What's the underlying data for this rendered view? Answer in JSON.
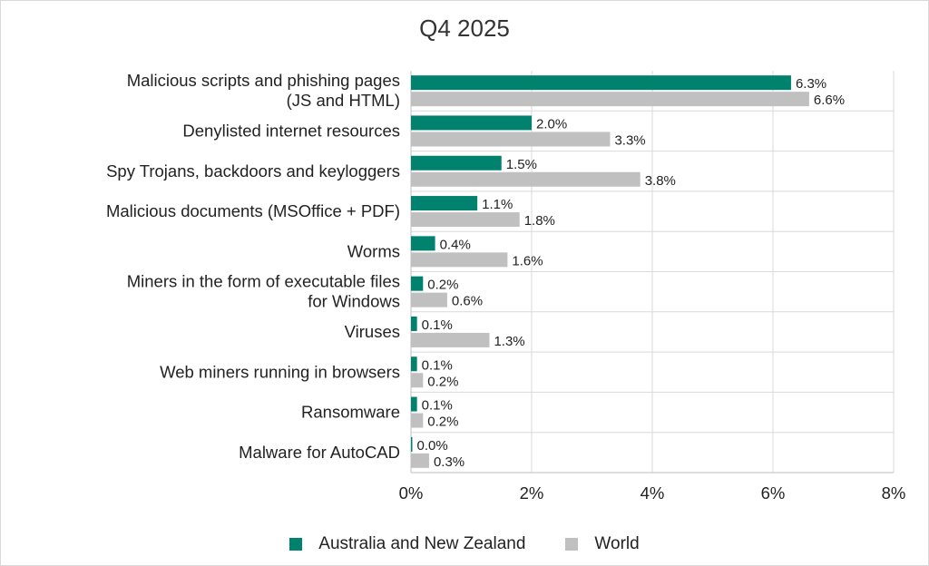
{
  "chart_data": {
    "type": "bar",
    "orientation": "horizontal",
    "title": "Q4 2025",
    "categories": [
      [
        "Malicious scripts and phishing pages",
        "(JS and HTML)"
      ],
      [
        "Denylisted internet resources"
      ],
      [
        "Spy Trojans, backdoors and keyloggers"
      ],
      [
        "Malicious documents (MSOffice + PDF)"
      ],
      [
        "Worms"
      ],
      [
        "Miners in the form of executable files",
        "for Windows"
      ],
      [
        "Viruses"
      ],
      [
        "Web miners running in browsers"
      ],
      [
        "Ransomware"
      ],
      [
        "Malware for AutoCAD"
      ]
    ],
    "series": [
      {
        "name": "Australia and New Zealand",
        "color": "#00826e",
        "values": [
          6.3,
          2.0,
          1.5,
          1.1,
          0.4,
          0.2,
          0.1,
          0.1,
          0.1,
          0.0
        ],
        "labels": [
          "6.3%",
          "2.0%",
          "1.5%",
          "1.1%",
          "0.4%",
          "0.2%",
          "0.1%",
          "0.1%",
          "0.1%",
          "0.0%"
        ]
      },
      {
        "name": "World",
        "color": "#c0c0c0",
        "values": [
          6.6,
          3.3,
          3.8,
          1.8,
          1.6,
          0.6,
          1.3,
          0.2,
          0.2,
          0.3
        ],
        "labels": [
          "6.6%",
          "3.3%",
          "3.8%",
          "1.8%",
          "1.6%",
          "0.6%",
          "1.3%",
          "0.2%",
          "0.2%",
          "0.3%"
        ]
      }
    ],
    "xlim": [
      0,
      8
    ],
    "xticks": [
      0,
      2,
      4,
      6,
      8
    ],
    "xtick_labels": [
      "0%",
      "2%",
      "4%",
      "6%",
      "8%"
    ],
    "grid": true,
    "legend_position": "bottom"
  }
}
